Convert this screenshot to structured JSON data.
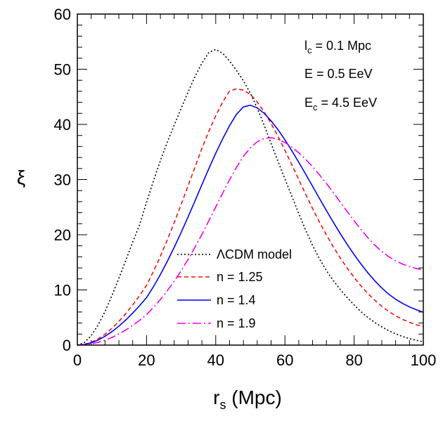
{
  "chart_data": {
    "type": "line",
    "xlabel": "r",
    "xlabel_sub": "s",
    "xlabel_unit": " (Mpc)",
    "ylabel": "ξ",
    "xlim": [
      0,
      100
    ],
    "ylim": [
      0,
      60
    ],
    "xticks": [
      "0",
      "20",
      "40",
      "60",
      "80",
      "100"
    ],
    "yticks": [
      "0",
      "10",
      "20",
      "30",
      "40",
      "50",
      "60"
    ],
    "x": [
      0,
      2,
      4,
      6,
      8,
      10,
      12,
      14,
      16,
      18,
      20,
      22,
      24,
      26,
      28,
      30,
      32,
      34,
      36,
      38,
      40,
      42,
      44,
      46,
      48,
      50,
      52,
      54,
      56,
      58,
      60,
      62,
      64,
      66,
      68,
      70,
      72,
      74,
      76,
      78,
      80,
      82,
      84,
      86,
      88,
      90,
      92,
      94,
      96,
      98,
      100
    ],
    "annotations": [
      {
        "main": "l",
        "sub": "c",
        "rest": " = 0.1 Mpc"
      },
      {
        "main": "E = 0.5 EeV",
        "sub": "",
        "rest": ""
      },
      {
        "main": "E",
        "sub": "c",
        "rest": " = 4.5 EeV"
      }
    ],
    "series": [
      {
        "name": "ΛCDM model",
        "color": "#000000",
        "dash": "2,3",
        "values": [
          0.0,
          0.44,
          1.7,
          3.63,
          6.09,
          8.96,
          12.09,
          15.36,
          18.64,
          21.84,
          25.87,
          29.77,
          33.43,
          36.79,
          39.88,
          42.89,
          45.87,
          48.67,
          51.12,
          53.02,
          53.59,
          52.89,
          51.48,
          49.79,
          47.9,
          45.66,
          42.94,
          39.83,
          36.55,
          33.29,
          30.12,
          26.98,
          23.84,
          20.82,
          18.05,
          15.61,
          13.5,
          11.68,
          10.07,
          8.61,
          7.27,
          6.05,
          4.99,
          4.08,
          3.3,
          2.62,
          2.04,
          1.56,
          1.17,
          0.86,
          0.6
        ]
      },
      {
        "name": "n = 1.25",
        "color": "#ee1111",
        "dash": "6,4",
        "values": [
          0.0,
          0.13,
          0.51,
          1.13,
          1.97,
          3.03,
          4.29,
          5.71,
          7.29,
          8.98,
          10.83,
          13.35,
          16.11,
          19.06,
          22.19,
          25.47,
          28.85,
          32.27,
          35.63,
          38.75,
          41.57,
          44.06,
          46.05,
          46.45,
          46.22,
          45.43,
          44.06,
          42.27,
          40.17,
          37.83,
          35.32,
          32.69,
          30.0,
          27.33,
          24.74,
          22.27,
          19.95,
          17.79,
          15.79,
          13.95,
          12.26,
          10.71,
          9.33,
          8.11,
          7.03,
          6.1,
          5.31,
          4.66,
          4.13,
          3.69,
          3.35
        ]
      },
      {
        "name": "n = 1.4",
        "color": "#0000ee",
        "dash": "",
        "values": [
          0.0,
          0.11,
          0.42,
          0.92,
          1.6,
          2.44,
          3.43,
          4.55,
          5.8,
          7.15,
          8.61,
          10.59,
          12.79,
          15.18,
          17.72,
          20.41,
          23.22,
          26.13,
          29.07,
          31.98,
          34.77,
          37.38,
          39.77,
          41.83,
          43.18,
          43.48,
          42.99,
          42.0,
          40.65,
          39.03,
          37.2,
          35.23,
          33.14,
          30.97,
          28.77,
          26.56,
          24.38,
          22.25,
          20.2,
          18.24,
          16.4,
          14.68,
          13.08,
          11.63,
          10.34,
          9.23,
          8.3,
          7.55,
          6.92,
          6.4,
          5.96
        ]
      },
      {
        "name": "n = 1.9",
        "color": "#ee00ee",
        "dash": "12,4,2,4",
        "values": [
          0.0,
          0.06,
          0.22,
          0.5,
          0.89,
          1.39,
          2.01,
          2.73,
          3.55,
          4.49,
          5.53,
          6.83,
          8.26,
          9.85,
          11.58,
          13.48,
          15.52,
          17.72,
          20.06,
          22.52,
          25.03,
          27.54,
          29.96,
          32.22,
          34.21,
          35.77,
          36.86,
          37.45,
          37.59,
          37.31,
          36.71,
          35.89,
          34.86,
          33.67,
          32.33,
          30.86,
          29.28,
          27.63,
          25.93,
          24.21,
          22.53,
          20.93,
          19.44,
          18.11,
          16.96,
          16.02,
          15.27,
          14.68,
          14.23,
          13.88,
          13.61
        ]
      }
    ]
  }
}
